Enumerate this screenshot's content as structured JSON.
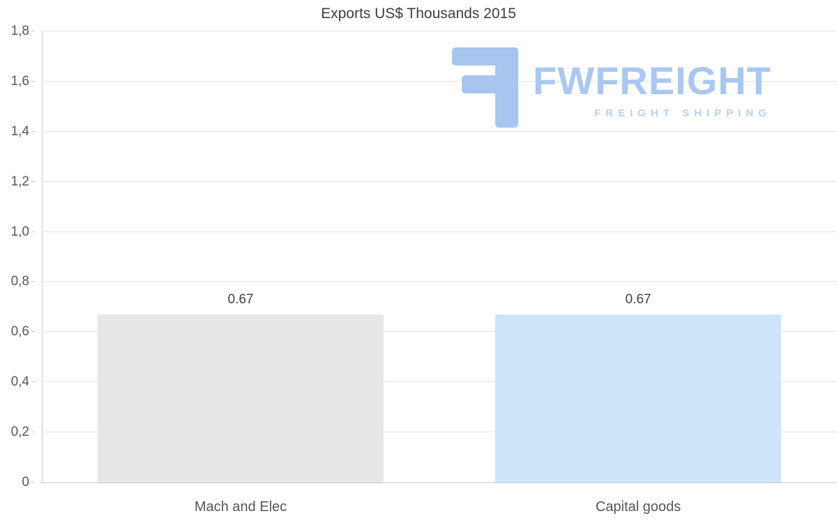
{
  "title": "Exports US$ Thousands 2015",
  "watermark": {
    "brand": "FWFREIGHT",
    "tagline": "FREIGHT SHIPPING",
    "icon_color": "#a6c6f0",
    "text_color": "#aac7f0"
  },
  "colors": {
    "grid": "#e4e4e4",
    "axis": "#c9c9c9",
    "title_text": "#3d3d3d",
    "tick_text": "#595959"
  },
  "chart_data": {
    "type": "bar",
    "title": "Exports US$ Thousands 2015",
    "categories": [
      "Mach and Elec",
      "Capital goods"
    ],
    "values": [
      0.67,
      0.67
    ],
    "value_labels": [
      "0.67",
      "0.67"
    ],
    "bar_colors": [
      "#e7e7e7",
      "#cde5f8"
    ],
    "ylim": [
      0,
      1.8
    ],
    "ytick_step": 0.2,
    "ytick_labels": [
      "0",
      "0,2",
      "0,4",
      "0,6",
      "0,8",
      "1,0",
      "1,2",
      "1,4",
      "1,6",
      "1,8"
    ],
    "grid": true,
    "legend": "none",
    "decimal_separator_axis": ",",
    "decimal_separator_labels": "."
  }
}
